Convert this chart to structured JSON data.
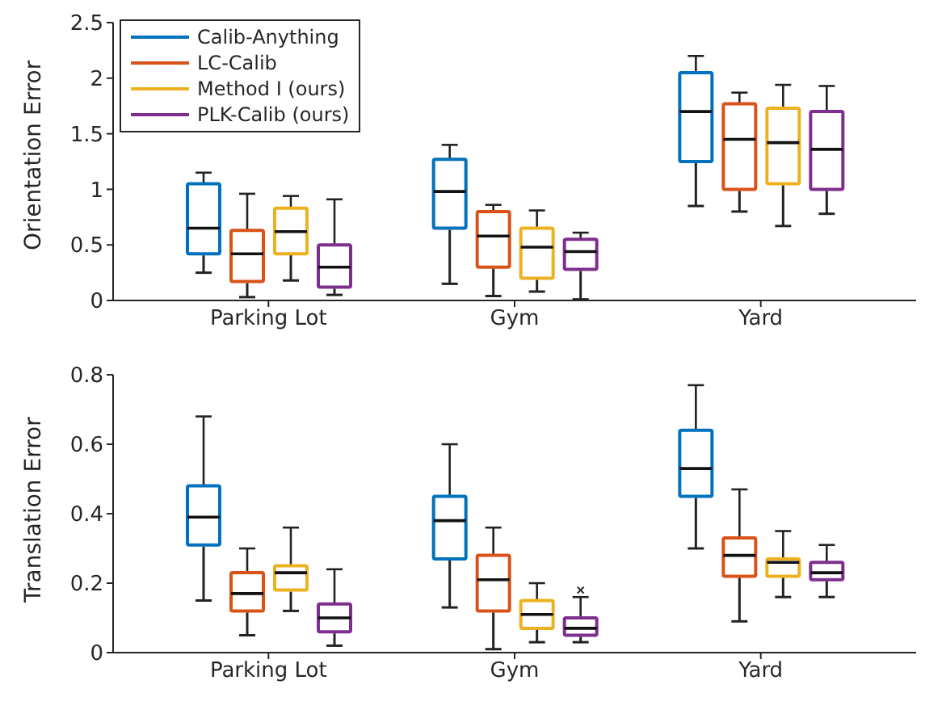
{
  "chart_data": [
    {
      "type": "box",
      "ylabel": "Orientation Error",
      "categories": [
        "Parking Lot",
        "Gym",
        "Yard"
      ],
      "ylim": [
        0,
        2.5
      ],
      "yticks": [
        0,
        0.5,
        1,
        1.5,
        2,
        2.5
      ],
      "grid": false,
      "legend": "top left",
      "series": [
        {
          "name": "Calib-Anything",
          "color": "#0072bd",
          "boxes": [
            {
              "low": 0.25,
              "q1": 0.42,
              "median": 0.65,
              "q3": 1.05,
              "high": 1.15
            },
            {
              "low": 0.15,
              "q1": 0.65,
              "median": 0.98,
              "q3": 1.27,
              "high": 1.4
            },
            {
              "low": 0.85,
              "q1": 1.25,
              "median": 1.7,
              "q3": 2.05,
              "high": 2.2
            }
          ]
        },
        {
          "name": "LC-Calib",
          "color": "#d95319",
          "boxes": [
            {
              "low": 0.03,
              "q1": 0.17,
              "median": 0.42,
              "q3": 0.63,
              "high": 0.96
            },
            {
              "low": 0.04,
              "q1": 0.3,
              "median": 0.58,
              "q3": 0.8,
              "high": 0.86
            },
            {
              "low": 0.8,
              "q1": 1.0,
              "median": 1.45,
              "q3": 1.77,
              "high": 1.87
            }
          ]
        },
        {
          "name": "Method I (ours)",
          "color": "#edb120",
          "boxes": [
            {
              "low": 0.18,
              "q1": 0.42,
              "median": 0.62,
              "q3": 0.83,
              "high": 0.94
            },
            {
              "low": 0.08,
              "q1": 0.2,
              "median": 0.48,
              "q3": 0.65,
              "high": 0.81
            },
            {
              "low": 0.67,
              "q1": 1.05,
              "median": 1.42,
              "q3": 1.73,
              "high": 1.94
            }
          ]
        },
        {
          "name": "PLK-Calib (ours)",
          "color": "#7e2f8e",
          "boxes": [
            {
              "low": 0.05,
              "q1": 0.12,
              "median": 0.3,
              "q3": 0.5,
              "high": 0.91
            },
            {
              "low": 0.01,
              "q1": 0.28,
              "median": 0.44,
              "q3": 0.55,
              "high": 0.61
            },
            {
              "low": 0.78,
              "q1": 1.0,
              "median": 1.36,
              "q3": 1.7,
              "high": 1.93
            }
          ]
        }
      ]
    },
    {
      "type": "box",
      "ylabel": "Translation Error",
      "categories": [
        "Parking Lot",
        "Gym",
        "Yard"
      ],
      "ylim": [
        0,
        0.8
      ],
      "yticks": [
        0,
        0.2,
        0.4,
        0.6,
        0.8
      ],
      "grid": false,
      "series": [
        {
          "color": "#0072bd",
          "boxes": [
            {
              "low": 0.15,
              "q1": 0.31,
              "median": 0.39,
              "q3": 0.48,
              "high": 0.68
            },
            {
              "low": 0.13,
              "q1": 0.27,
              "median": 0.38,
              "q3": 0.45,
              "high": 0.6
            },
            {
              "low": 0.3,
              "q1": 0.45,
              "median": 0.53,
              "q3": 0.64,
              "high": 0.77
            }
          ]
        },
        {
          "color": "#d95319",
          "boxes": [
            {
              "low": 0.05,
              "q1": 0.12,
              "median": 0.17,
              "q3": 0.23,
              "high": 0.3
            },
            {
              "low": 0.01,
              "q1": 0.12,
              "median": 0.21,
              "q3": 0.28,
              "high": 0.36
            },
            {
              "low": 0.09,
              "q1": 0.22,
              "median": 0.28,
              "q3": 0.33,
              "high": 0.47
            }
          ]
        },
        {
          "color": "#edb120",
          "boxes": [
            {
              "low": 0.12,
              "q1": 0.18,
              "median": 0.23,
              "q3": 0.25,
              "high": 0.36
            },
            {
              "low": 0.03,
              "q1": 0.07,
              "median": 0.11,
              "q3": 0.15,
              "high": 0.2
            },
            {
              "low": 0.16,
              "q1": 0.22,
              "median": 0.26,
              "q3": 0.27,
              "high": 0.35
            }
          ]
        },
        {
          "color": "#7e2f8e",
          "boxes": [
            {
              "low": 0.02,
              "q1": 0.06,
              "median": 0.1,
              "q3": 0.14,
              "high": 0.24
            },
            {
              "low": 0.03,
              "q1": 0.05,
              "median": 0.07,
              "q3": 0.1,
              "high": 0.16,
              "outliers": [
                0.18
              ]
            },
            {
              "low": 0.16,
              "q1": 0.21,
              "median": 0.23,
              "q3": 0.26,
              "high": 0.31
            }
          ]
        }
      ]
    }
  ]
}
